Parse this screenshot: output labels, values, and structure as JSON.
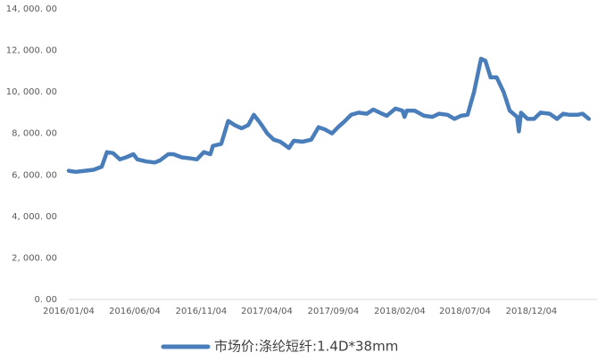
{
  "chart_data": {
    "type": "line",
    "x": [
      "2016/01/04",
      "2016/01/20",
      "2016/02/10",
      "2016/03/01",
      "2016/03/20",
      "2016/04/01",
      "2016/04/15",
      "2016/05/01",
      "2016/05/15",
      "2016/06/01",
      "2016/06/10",
      "2016/07/01",
      "2016/07/20",
      "2016/08/01",
      "2016/08/20",
      "2016/09/01",
      "2016/09/20",
      "2016/10/10",
      "2016/10/25",
      "2016/11/10",
      "2016/11/25",
      "2016/12/01",
      "2016/12/20",
      "2017/01/05",
      "2017/01/20",
      "2017/02/05",
      "2017/02/20",
      "2017/03/05",
      "2017/03/20",
      "2017/04/05",
      "2017/04/20",
      "2017/05/05",
      "2017/05/25",
      "2017/06/05",
      "2017/06/25",
      "2017/07/15",
      "2017/08/01",
      "2017/08/15",
      "2017/09/01",
      "2017/09/15",
      "2017/10/01",
      "2017/10/15",
      "2017/11/01",
      "2017/11/20",
      "2017/12/05",
      "2017/12/20",
      "2018/01/05",
      "2018/01/25",
      "2018/02/10",
      "2018/02/15",
      "2018/02/20",
      "2018/03/10",
      "2018/04/01",
      "2018/04/20",
      "2018/05/05",
      "2018/05/25",
      "2018/06/10",
      "2018/06/25",
      "2018/07/10",
      "2018/07/25",
      "2018/08/10",
      "2018/08/20",
      "2018/09/01",
      "2018/09/15",
      "2018/10/01",
      "2018/10/15",
      "2018/11/01",
      "2018/11/05",
      "2018/11/10",
      "2018/11/25",
      "2018/12/10",
      "2018/12/25",
      "2019/01/15",
      "2019/02/01",
      "2019/02/15",
      "2019/03/01",
      "2019/03/20",
      "2019/04/01",
      "2019/04/15"
    ],
    "series": [
      {
        "name": "市场价:涤纶短纤:1.4D*38mm",
        "color": "#4a7ebb",
        "values": [
          6200,
          6150,
          6200,
          6250,
          6400,
          7100,
          7050,
          6750,
          6850,
          7000,
          6750,
          6650,
          6600,
          6700,
          7000,
          7000,
          6850,
          6800,
          6750,
          7100,
          7000,
          7400,
          7500,
          8600,
          8400,
          8250,
          8400,
          8900,
          8500,
          8000,
          7700,
          7600,
          7300,
          7650,
          7600,
          7700,
          8300,
          8200,
          8000,
          8300,
          8600,
          8900,
          9000,
          8950,
          9150,
          9000,
          8850,
          9200,
          9100,
          8800,
          9100,
          9100,
          8850,
          8800,
          8950,
          8900,
          8700,
          8850,
          8900,
          10000,
          11600,
          11500,
          10700,
          10700,
          10000,
          9100,
          8800,
          8100,
          9000,
          8700,
          8700,
          9000,
          8950,
          8700,
          8950,
          8900,
          8900,
          8950,
          8700
        ]
      }
    ],
    "xlim": [
      "2016/01/04",
      "2019/05/04"
    ],
    "xticks": [
      "2016/01/04",
      "2016/06/04",
      "2016/11/04",
      "2017/04/04",
      "2017/09/04",
      "2018/02/04",
      "2018/07/04",
      "2018/12/04"
    ],
    "ylim": [
      0,
      14000
    ],
    "yticks": [
      {
        "value": 0,
        "label": "0. 00"
      },
      {
        "value": 2000,
        "label": "2, 000. 00"
      },
      {
        "value": 4000,
        "label": "4, 000. 00"
      },
      {
        "value": 6000,
        "label": "6, 000. 00"
      },
      {
        "value": 8000,
        "label": "8, 000. 00"
      },
      {
        "value": 10000,
        "label": "10, 000. 00"
      },
      {
        "value": 12000,
        "label": "12, 000. 00"
      },
      {
        "value": 14000,
        "label": "14, 000. 00"
      }
    ],
    "legend": "bottom"
  }
}
